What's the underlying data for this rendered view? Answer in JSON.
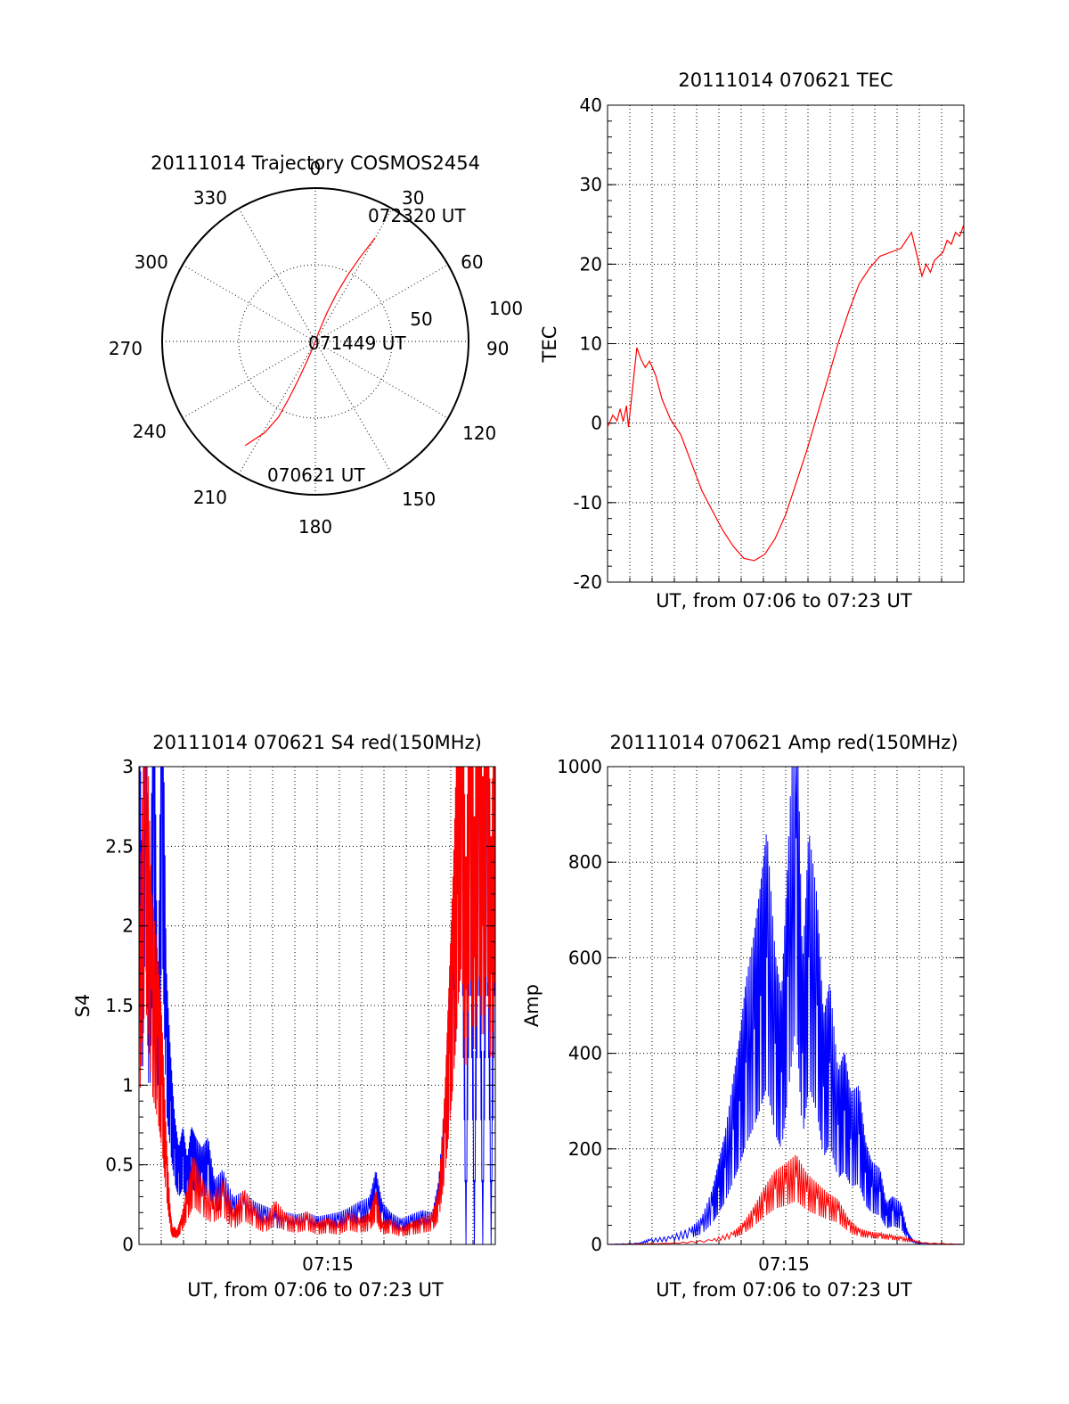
{
  "colors": {
    "red": "#ff0000",
    "blue": "#0000ff",
    "axes": "#000000"
  },
  "chart_data": [
    {
      "id": "trajectory",
      "type": "scatter",
      "projection": "polar",
      "title": "20111014 Trajectory COSMOS2454",
      "azimuth_labels": [
        "0",
        "30",
        "60",
        "90",
        "120",
        "150",
        "180",
        "210",
        "240",
        "270",
        "300",
        "330"
      ],
      "radius_labels": [
        "50",
        "100"
      ],
      "rlim": [
        0,
        100
      ],
      "grid": true,
      "annotations": [
        "072320 UT",
        "071449 UT",
        "070621 UT"
      ],
      "series": [
        {
          "color": "#ff0000",
          "points_az_r": [
            [
              214,
              82
            ],
            [
              209,
              68
            ],
            [
              206,
              55
            ],
            [
              205,
              42
            ],
            [
              204,
              28
            ],
            [
              203,
              14
            ],
            [
              201,
              4
            ],
            [
              20,
              6
            ],
            [
              22,
              20
            ],
            [
              24,
              34
            ],
            [
              26,
              48
            ],
            [
              28,
              62
            ],
            [
              30,
              78
            ]
          ]
        }
      ]
    },
    {
      "id": "tec",
      "type": "line",
      "title": "20111014 070621 TEC",
      "xlabel": "UT, from 07:06 to 07:23 UT",
      "ylabel": "TEC",
      "xlim": [
        0,
        17
      ],
      "ylim": [
        -20,
        40
      ],
      "yticks": [
        "-20",
        "-10",
        "0",
        "10",
        "20",
        "30",
        "40"
      ],
      "grid": true,
      "series": [
        {
          "color": "#ff0000",
          "x": [
            0,
            0.25,
            0.45,
            0.6,
            0.75,
            0.9,
            1.0,
            1.2,
            1.4,
            1.6,
            1.8,
            2.0,
            2.3,
            2.6,
            3.0,
            3.5,
            4.0,
            4.5,
            5.0,
            5.5,
            6.0,
            6.5,
            7.0,
            7.5,
            8.0,
            8.5,
            9.0,
            9.5,
            10.0,
            10.5,
            11.0,
            11.5,
            12.0,
            12.5,
            13.0,
            13.5,
            14.0,
            14.5,
            15.0,
            15.2,
            15.4,
            15.6,
            15.8,
            16.0,
            16.2,
            16.4,
            16.6,
            16.8,
            17.0
          ],
          "y": [
            -0.5,
            1.0,
            0.3,
            1.8,
            0.2,
            2.2,
            -0.5,
            4.5,
            9.5,
            8.0,
            7.0,
            7.8,
            6.0,
            3.0,
            0.5,
            -1.5,
            -5.0,
            -8.5,
            -11.0,
            -13.5,
            -15.5,
            -17.0,
            -17.3,
            -16.5,
            -14.5,
            -11.5,
            -7.5,
            -3.5,
            1.0,
            5.5,
            10.0,
            14.0,
            17.5,
            19.5,
            21.0,
            21.5,
            22.0,
            24.0,
            18.5,
            20.0,
            19.0,
            20.5,
            21.0,
            21.5,
            23.0,
            22.5,
            24.0,
            23.5,
            25.0
          ]
        }
      ]
    },
    {
      "id": "s4",
      "type": "line",
      "title": "20111014 070621 S4 red(150MHz)",
      "xlabel": "UT, from 07:06 to 07:23 UT",
      "ylabel": "S4",
      "xtick_label": "07:15",
      "xlim": [
        0,
        17
      ],
      "ylim": [
        0,
        3
      ],
      "yticks": [
        "0",
        "0.5",
        "1",
        "1.5",
        "2",
        "2.5",
        "3"
      ],
      "grid": true,
      "series": [
        {
          "color": "#0000ff",
          "x": [
            0.0,
            0.15,
            0.3,
            0.5,
            0.7,
            0.9,
            1.1,
            1.3,
            1.5,
            1.7,
            1.9,
            2.1,
            2.3,
            2.5,
            2.7,
            3.0,
            3.3,
            3.6,
            4.0,
            4.5,
            5.0,
            5.5,
            6.0,
            6.5,
            7.0,
            7.5,
            8.0,
            8.5,
            9.0,
            9.5,
            10.0,
            10.5,
            11.0,
            11.3,
            11.6,
            12.0,
            12.5,
            13.0,
            13.5,
            14.0,
            14.3,
            14.6,
            14.8,
            15.0,
            15.2,
            15.4,
            15.6,
            15.8,
            16.0,
            16.2,
            16.4,
            16.6,
            16.8,
            17.0
          ],
          "y": [
            3.0,
            1.4,
            3.0,
            1.2,
            3.0,
            1.0,
            3.0,
            1.3,
            0.9,
            0.6,
            0.45,
            0.55,
            0.4,
            0.55,
            0.5,
            0.45,
            0.5,
            0.3,
            0.35,
            0.22,
            0.25,
            0.2,
            0.18,
            0.16,
            0.15,
            0.14,
            0.15,
            0.13,
            0.14,
            0.15,
            0.17,
            0.2,
            0.22,
            0.35,
            0.2,
            0.15,
            0.12,
            0.14,
            0.16,
            0.15,
            0.3,
            0.7,
            1.2,
            1.6,
            2.2,
            3.0,
            0.0,
            3.0,
            0.0,
            3.0,
            0.0,
            3.0,
            0.0,
            3.0
          ]
        },
        {
          "color": "#ff0000",
          "x": [
            0.0,
            0.3,
            0.6,
            0.9,
            1.1,
            1.3,
            1.5,
            1.6,
            1.7,
            1.8,
            2.0,
            2.3,
            2.6,
            3.0,
            3.5,
            4.0,
            4.5,
            5.0,
            5.5,
            6.0,
            6.5,
            7.0,
            7.5,
            8.0,
            8.5,
            9.0,
            9.5,
            10.0,
            10.5,
            11.0,
            11.3,
            11.6,
            12.0,
            12.5,
            13.0,
            13.5,
            14.0,
            14.3,
            14.6,
            14.8,
            15.0,
            15.2,
            15.4,
            15.6,
            15.8,
            16.0,
            16.2,
            16.4,
            16.6,
            16.8,
            17.0
          ],
          "y": [
            1.4,
            2.6,
            1.6,
            1.3,
            1.0,
            0.5,
            0.15,
            0.07,
            0.08,
            0.06,
            0.12,
            0.25,
            0.4,
            0.3,
            0.22,
            0.3,
            0.15,
            0.25,
            0.18,
            0.12,
            0.2,
            0.14,
            0.12,
            0.15,
            0.1,
            0.12,
            0.1,
            0.15,
            0.12,
            0.14,
            0.25,
            0.1,
            0.12,
            0.08,
            0.1,
            0.12,
            0.14,
            0.25,
            0.7,
            1.2,
            1.7,
            2.4,
            3.0,
            1.6,
            3.0,
            1.8,
            3.0,
            2.0,
            3.0,
            1.7,
            3.0
          ]
        }
      ]
    },
    {
      "id": "amp",
      "type": "line",
      "title": "20111014 070621 Amp red(150MHz)",
      "xlabel": "UT, from 07:06 to 07:23 UT",
      "ylabel": "Amp",
      "xtick_label": "07:15",
      "xlim": [
        0,
        17
      ],
      "ylim": [
        0,
        1000
      ],
      "yticks": [
        "0",
        "200",
        "400",
        "600",
        "800",
        "1000"
      ],
      "grid": true,
      "series": [
        {
          "color": "#0000ff",
          "x": [
            0,
            1.5,
            2.0,
            3.0,
            4.0,
            4.5,
            5.0,
            5.3,
            5.6,
            6.0,
            6.3,
            6.6,
            7.0,
            7.3,
            7.6,
            8.0,
            8.3,
            8.6,
            9.0,
            9.3,
            9.6,
            10.0,
            10.3,
            10.6,
            11.0,
            11.3,
            11.6,
            12.0,
            12.3,
            12.6,
            13.0,
            13.3,
            13.6,
            14.0,
            14.3,
            14.6,
            15.0,
            17.0
          ],
          "y": [
            0,
            2,
            8,
            12,
            25,
            40,
            80,
            120,
            160,
            240,
            300,
            380,
            450,
            520,
            600,
            420,
            360,
            560,
            850,
            400,
            600,
            500,
            330,
            380,
            250,
            280,
            220,
            230,
            150,
            120,
            110,
            60,
            70,
            60,
            20,
            5,
            2,
            0
          ]
        },
        {
          "color": "#ff0000",
          "x": [
            0,
            3.0,
            5.0,
            6.0,
            6.5,
            7.0,
            7.5,
            8.0,
            8.5,
            9.0,
            9.5,
            10.0,
            10.5,
            11.0,
            11.5,
            12.0,
            12.5,
            13.0,
            13.5,
            14.0,
            14.5,
            15.0,
            17.0
          ],
          "y": [
            0,
            2,
            8,
            20,
            35,
            60,
            90,
            115,
            125,
            140,
            110,
            95,
            80,
            70,
            40,
            25,
            20,
            18,
            15,
            12,
            8,
            3,
            0
          ]
        }
      ]
    }
  ]
}
